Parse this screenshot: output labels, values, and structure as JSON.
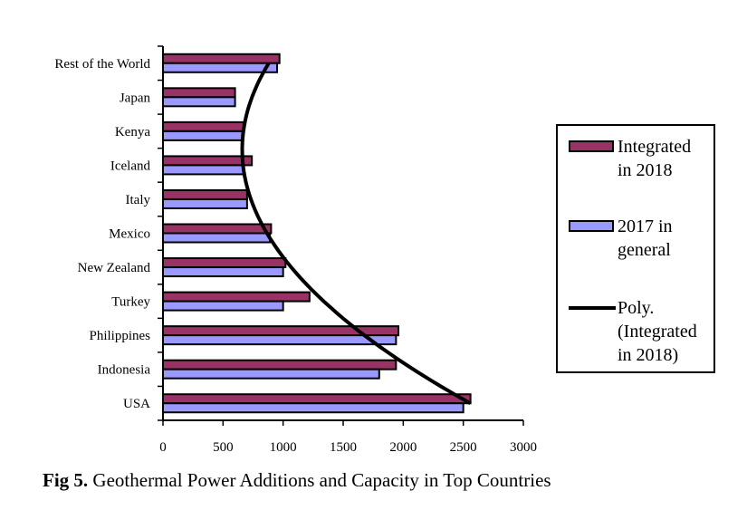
{
  "chart_data": {
    "type": "bar",
    "orientation": "horizontal",
    "categories": [
      "Rest of the World",
      "Japan",
      "Kenya",
      "Iceland",
      "Italy",
      "Mexico",
      "New Zealand",
      "Turkey",
      "Philippines",
      "Indonesia",
      "USA"
    ],
    "series": [
      {
        "name": "Integrated in 2018",
        "color": "#993366",
        "values": [
          970,
          600,
          670,
          740,
          700,
          900,
          1020,
          1220,
          1960,
          1940,
          2560
        ]
      },
      {
        "name": "2017 in general",
        "color": "#9999ff",
        "values": [
          950,
          600,
          660,
          670,
          700,
          890,
          1000,
          1000,
          1940,
          1800,
          2500
        ]
      }
    ],
    "trendline": {
      "name": "Poly. (Integrated in 2018)",
      "type": "polynomial",
      "color": "#000000"
    },
    "xlim": [
      0,
      3000
    ],
    "xticks": [
      "0",
      "500",
      "1000",
      "1500",
      "2000",
      "2500",
      "3000"
    ],
    "xlabel": "",
    "ylabel": "",
    "legend_position": "right",
    "grid": false
  },
  "legend": {
    "item1": "Integrated\nin 2018",
    "item2": "2017 in\ngeneral",
    "item3": "Poly.\n(Integrated\nin 2018)"
  },
  "caption": {
    "label": "Fig 5.",
    "text": " Geothermal Power Additions and Capacity in Top Countries"
  }
}
